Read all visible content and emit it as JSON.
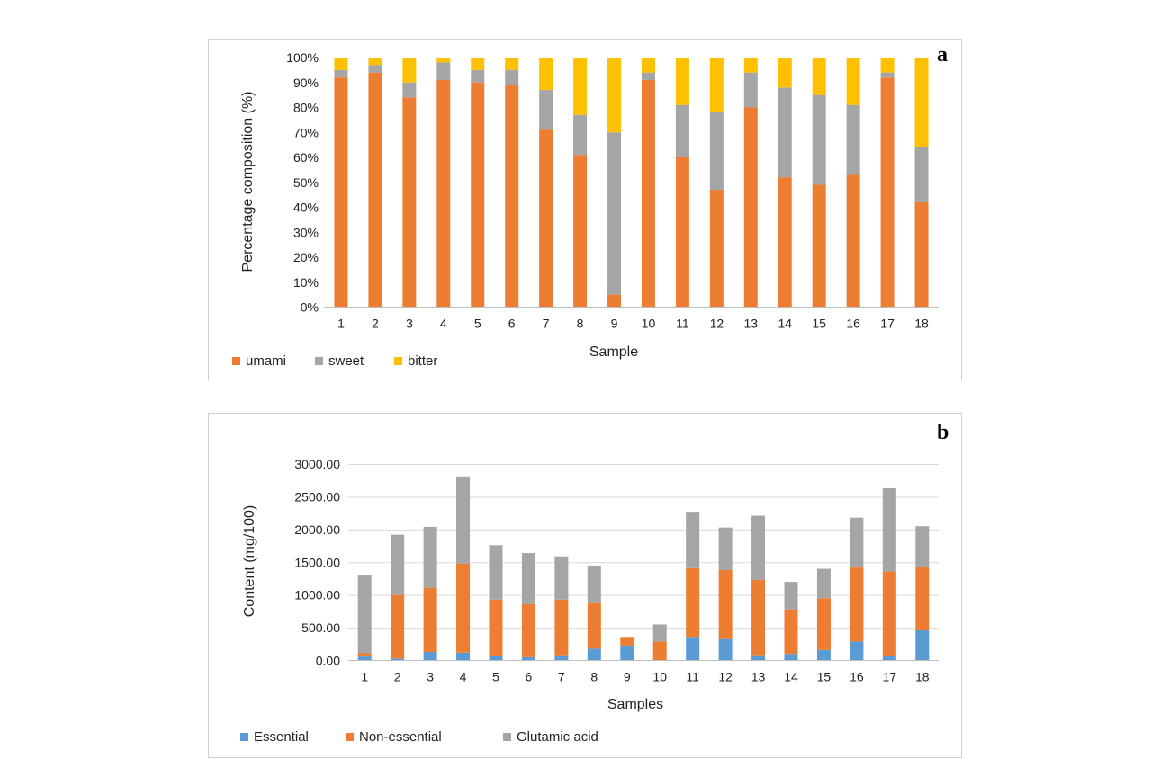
{
  "colors": {
    "umami": "#ED7D31",
    "sweet": "#A5A5A5",
    "bitter": "#FFC000",
    "essential": "#5B9BD5",
    "non_essential": "#ED7D31",
    "glutamic": "#A5A5A5"
  },
  "chart_data": [
    {
      "panel": "a",
      "type": "bar",
      "stacked": true,
      "title": "",
      "xlabel": "Sample",
      "ylabel": "Percentage composition (%)",
      "ylim": [
        0,
        100
      ],
      "y_ticks": [
        "0%",
        "10%",
        "20%",
        "30%",
        "40%",
        "50%",
        "60%",
        "70%",
        "80%",
        "90%",
        "100%"
      ],
      "grid": false,
      "legend_position": "bottom-left",
      "categories": [
        "1",
        "2",
        "3",
        "4",
        "5",
        "6",
        "7",
        "8",
        "9",
        "10",
        "11",
        "12",
        "13",
        "14",
        "15",
        "16",
        "17",
        "18"
      ],
      "series": [
        {
          "name": "umami",
          "color": "#ED7D31",
          "values": [
            92,
            94,
            84,
            91,
            90,
            89,
            71,
            61,
            5,
            91,
            60,
            47,
            80,
            52,
            49,
            53,
            92,
            42
          ]
        },
        {
          "name": "sweet",
          "color": "#A5A5A5",
          "values": [
            3,
            3,
            6,
            7,
            5,
            6,
            16,
            16,
            65,
            3,
            21,
            31,
            14,
            36,
            36,
            28,
            2,
            22
          ]
        },
        {
          "name": "bitter",
          "color": "#FFC000",
          "values": [
            5,
            3,
            10,
            2,
            5,
            5,
            13,
            23,
            30,
            6,
            19,
            22,
            6,
            12,
            15,
            19,
            6,
            36
          ]
        }
      ]
    },
    {
      "panel": "b",
      "type": "bar",
      "stacked": true,
      "title": "",
      "xlabel": "Samples",
      "ylabel": "Content (mg/100)",
      "ylim": [
        0,
        3000
      ],
      "y_ticks": [
        "0.00",
        "500.00",
        "1000.00",
        "1500.00",
        "2000.00",
        "2500.00",
        "3000.00"
      ],
      "grid": true,
      "legend_position": "bottom-left",
      "categories": [
        "1",
        "2",
        "3",
        "4",
        "5",
        "6",
        "7",
        "8",
        "9",
        "10",
        "11",
        "12",
        "13",
        "14",
        "15",
        "16",
        "17",
        "18"
      ],
      "series": [
        {
          "name": "Essential",
          "color": "#5B9BD5",
          "values": [
            60,
            30,
            130,
            120,
            70,
            50,
            80,
            180,
            230,
            0,
            360,
            340,
            80,
            100,
            160,
            290,
            70,
            470
          ]
        },
        {
          "name": "Non-essential",
          "color": "#ED7D31",
          "values": [
            50,
            970,
            980,
            1360,
            860,
            810,
            850,
            710,
            130,
            290,
            1050,
            1040,
            1150,
            680,
            790,
            1130,
            1290,
            960
          ]
        },
        {
          "name": "Glutamic acid",
          "color": "#A5A5A5",
          "values": [
            1200,
            920,
            930,
            1330,
            830,
            780,
            660,
            560,
            0,
            260,
            860,
            650,
            980,
            420,
            450,
            760,
            1270,
            620
          ]
        }
      ]
    }
  ],
  "panels": {
    "a_label": "a",
    "b_label": "b"
  }
}
